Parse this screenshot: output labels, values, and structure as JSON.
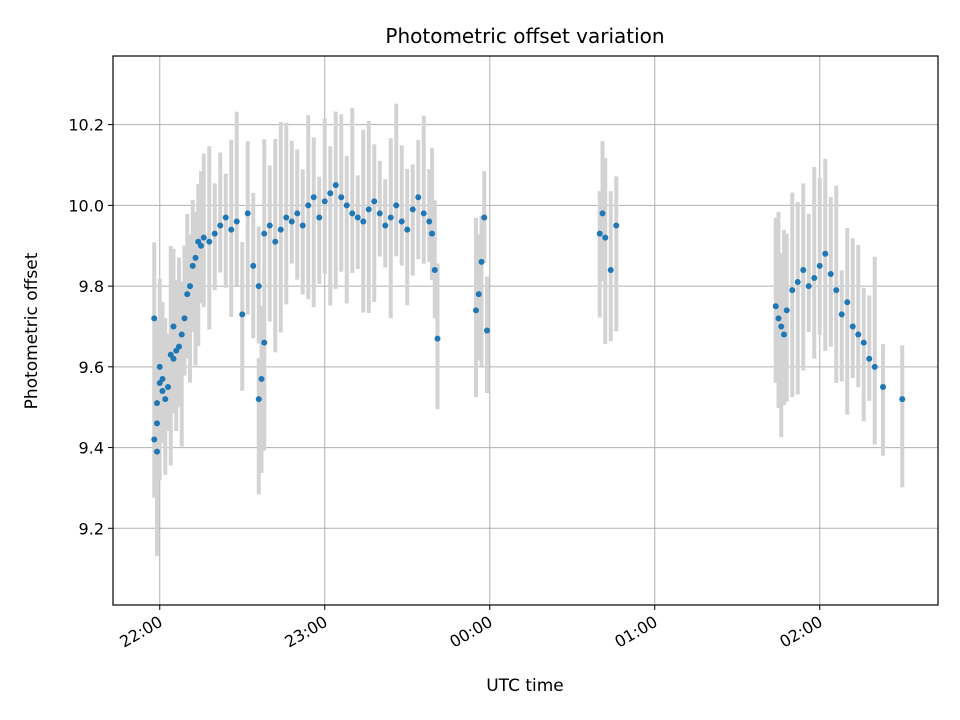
{
  "chart_data": {
    "type": "scatter",
    "title": "Photometric offset variation",
    "xlabel": "UTC time",
    "ylabel": "Photometric offset",
    "xlim": [
      "21:43",
      "02:43"
    ],
    "ylim": [
      9.01,
      10.37
    ],
    "grid": true,
    "x_ticks": [
      "22:00",
      "23:00",
      "00:00",
      "01:00",
      "02:00"
    ],
    "y_ticks": [
      "9.2",
      "9.4",
      "9.6",
      "9.8",
      "10.0",
      "10.2"
    ],
    "colors": {
      "points": "#1f77b4",
      "errorbars": "#d3d3d3",
      "grid": "#b0b0b0"
    },
    "series": [
      {
        "x": [
          "21:58",
          "21:58",
          "21:59",
          "21:59",
          "21:59",
          "22:00",
          "22:00",
          "22:01",
          "22:01",
          "22:02",
          "22:03",
          "22:04",
          "22:05",
          "22:05",
          "22:06",
          "22:07",
          "22:08",
          "22:09",
          "22:10",
          "22:11",
          "22:12",
          "22:13",
          "22:14",
          "22:15",
          "22:16",
          "22:18",
          "22:20",
          "22:22",
          "22:24",
          "22:26",
          "22:28",
          "22:30",
          "22:32",
          "22:34",
          "22:36",
          "22:38",
          "22:40",
          "22:42",
          "22:44",
          "22:46",
          "22:48",
          "22:50",
          "22:52",
          "22:54",
          "22:56",
          "22:58",
          "23:00",
          "23:02",
          "23:04",
          "23:06",
          "23:08",
          "23:10",
          "23:12",
          "23:14",
          "23:16",
          "23:18",
          "23:20",
          "23:22",
          "23:24",
          "23:26",
          "23:28",
          "23:30",
          "23:32",
          "23:34",
          "23:36",
          "23:38",
          "23:39",
          "23:40",
          "23:41"
        ],
        "y": [
          9.72,
          9.42,
          9.46,
          9.39,
          9.51,
          9.56,
          9.6,
          9.57,
          9.54,
          9.52,
          9.55,
          9.63,
          9.7,
          9.62,
          9.64,
          9.65,
          9.68,
          9.72,
          9.78,
          9.8,
          9.85,
          9.87,
          9.91,
          9.9,
          9.92,
          9.91,
          9.93,
          9.95,
          9.97,
          9.94,
          9.96,
          9.73,
          9.98,
          9.85,
          9.8,
          9.93,
          9.95,
          9.91,
          9.94,
          9.97,
          9.96,
          9.98,
          9.95,
          10.0,
          10.02,
          9.97,
          10.01,
          10.03,
          10.05,
          10.02,
          10.0,
          9.98,
          9.97,
          9.96,
          9.99,
          10.01,
          9.98,
          9.95,
          9.97,
          10.0,
          9.96,
          9.94,
          9.99,
          10.02,
          9.98,
          9.96,
          9.93,
          9.84,
          9.67
        ]
      },
      {
        "x": [
          "22:36",
          "22:37",
          "22:38",
          "23:55",
          "23:56",
          "23:57",
          "23:58",
          "23:59",
          "00:40",
          "00:41",
          "00:42",
          "00:44",
          "00:46",
          "01:44",
          "01:45",
          "01:46",
          "01:47",
          "01:48",
          "01:50",
          "01:52",
          "01:54",
          "01:56",
          "01:58",
          "02:00",
          "02:02",
          "02:04",
          "02:06",
          "02:08",
          "02:10",
          "02:12",
          "02:14",
          "02:16",
          "02:18",
          "02:20",
          "02:23",
          "02:30"
        ],
        "y": [
          9.52,
          9.57,
          9.66,
          9.74,
          9.78,
          9.86,
          9.97,
          9.69,
          9.93,
          9.98,
          9.92,
          9.84,
          9.95,
          9.75,
          9.72,
          9.7,
          9.68,
          9.74,
          9.79,
          9.81,
          9.84,
          9.8,
          9.82,
          9.85,
          9.88,
          9.83,
          9.79,
          9.73,
          9.76,
          9.7,
          9.68,
          9.66,
          9.62,
          9.6,
          9.55,
          9.52
        ]
      }
    ]
  }
}
